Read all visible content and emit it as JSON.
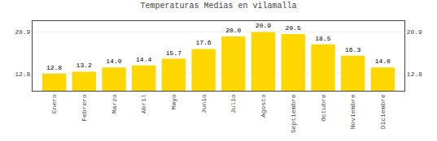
{
  "chart_data": {
    "type": "bar",
    "title": "Temperaturas Medias en vilamalla",
    "categories": [
      "Enero",
      "Febrero",
      "Marzo",
      "Abril",
      "Mayo",
      "Junio",
      "Julio",
      "Agosto",
      "Septiembre",
      "Octubre",
      "Noviembre",
      "Diciembre"
    ],
    "values": [
      12.8,
      13.2,
      14.0,
      14.4,
      15.7,
      17.6,
      20.0,
      20.9,
      20.5,
      18.5,
      16.3,
      14.0
    ],
    "value_labels": [
      "12.8",
      "13.2",
      "14.0",
      "14.4",
      "15.7",
      "17.6",
      "20.0",
      "20.9",
      "20.5",
      "18.5",
      "16.3",
      "14.0"
    ],
    "data_labels": true,
    "color": "#FFD700",
    "ylim": [
      9.5,
      23.0
    ],
    "yticks": [
      12.8,
      20.9
    ],
    "y2lim": [
      9.5,
      23.0
    ],
    "y2ticks": [
      12.8,
      20.9
    ],
    "grid": true
  }
}
